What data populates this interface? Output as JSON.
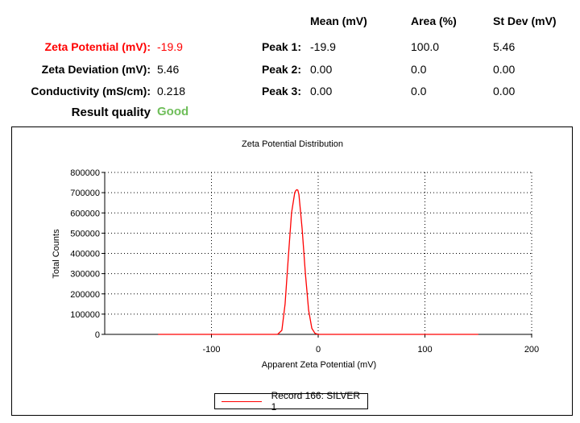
{
  "summary": {
    "zeta_potential_label": "Zeta Potential (mV):",
    "zeta_potential_value": "-19.9",
    "zeta_deviation_label": "Zeta Deviation (mV):",
    "zeta_deviation_value": "5.46",
    "conductivity_label": "Conductivity (mS/cm):",
    "conductivity_value": "0.218",
    "result_quality_label": "Result quality",
    "result_quality_value": "Good",
    "highlight_color": "#ff0000",
    "good_color": "#6fbe5a"
  },
  "peaks_table": {
    "headers": [
      "Mean (mV)",
      "Area (%)",
      "St Dev (mV)"
    ],
    "rows": [
      {
        "label": "Peak 1:",
        "mean": "-19.9",
        "area": "100.0",
        "stdev": "5.46"
      },
      {
        "label": "Peak 2:",
        "mean": "0.00",
        "area": "0.0",
        "stdev": "0.00"
      },
      {
        "label": "Peak 3:",
        "mean": "0.00",
        "area": "0.0",
        "stdev": "0.00"
      }
    ]
  },
  "chart_data": {
    "type": "line",
    "title": "Zeta Potential Distribution",
    "xlabel": "Apparent Zeta Potential (mV)",
    "ylabel": "Total Counts",
    "xlim": [
      -200,
      200
    ],
    "ylim": [
      0,
      800000
    ],
    "x_ticks": [
      -100,
      0,
      100,
      200
    ],
    "x_tick_labels": [
      "-100",
      "0",
      "100",
      "200"
    ],
    "y_ticks": [
      0,
      100000,
      200000,
      300000,
      400000,
      500000,
      600000,
      700000,
      800000
    ],
    "y_tick_labels": [
      "0",
      "100000",
      "200000",
      "300000",
      "400000",
      "500000",
      "600000",
      "700000",
      "800000"
    ],
    "grid": true,
    "legend_position": "bottom-center",
    "series": [
      {
        "name": "Record 166: SILVER 1",
        "color": "#ff0000",
        "x": [
          -150,
          -100,
          -50,
          -38,
          -34,
          -31,
          -28,
          -25,
          -22,
          -21,
          -20,
          -19,
          -18,
          -15,
          -12,
          -9,
          -6,
          -3,
          0,
          50,
          100,
          150
        ],
        "y": [
          0,
          0,
          0,
          0,
          20000,
          150000,
          380000,
          600000,
          700000,
          710000,
          715000,
          712000,
          690000,
          520000,
          300000,
          120000,
          30000,
          5000,
          0,
          0,
          0,
          0
        ]
      }
    ]
  }
}
